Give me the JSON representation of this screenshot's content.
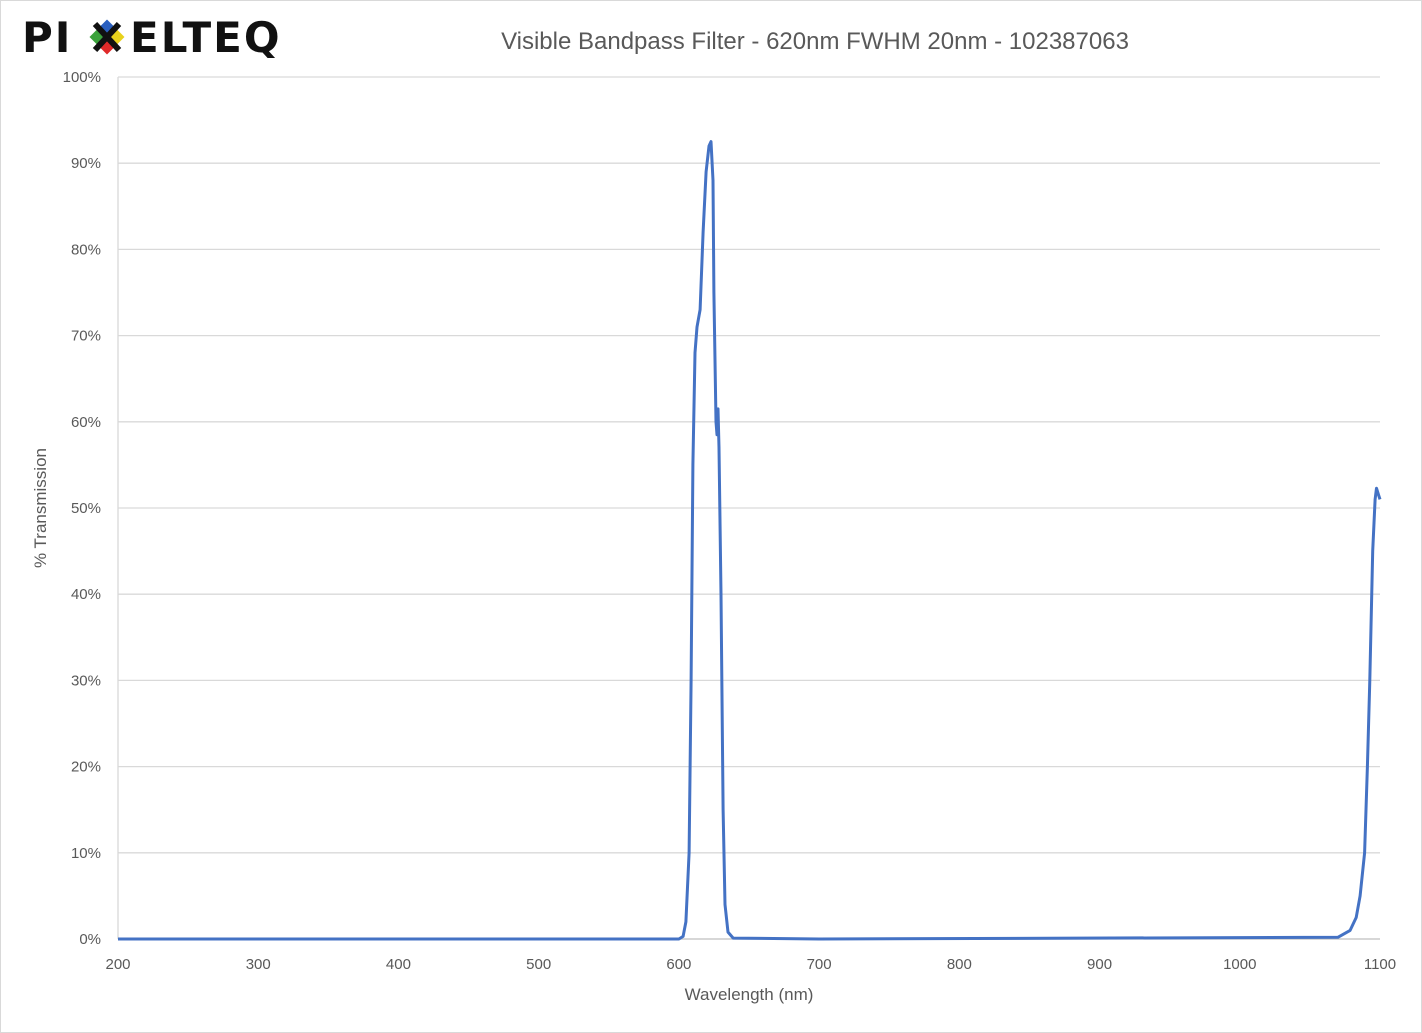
{
  "logo": {
    "text": "PIXELTEQ",
    "colors": [
      "#2a5fbf",
      "#e8d21c",
      "#e02a2a",
      "#3aa23a"
    ]
  },
  "chart_data": {
    "type": "line",
    "title": "Visible Bandpass Filter - 620nm FWHM 20nm - 102387063",
    "xlabel": "Wavelength (nm)",
    "ylabel": "% Transmission",
    "xlim": [
      200,
      1100
    ],
    "ylim": [
      0,
      100
    ],
    "xticks": [
      200,
      300,
      400,
      500,
      600,
      700,
      800,
      900,
      1000,
      1100
    ],
    "yticks": [
      "0%",
      "10%",
      "20%",
      "30%",
      "40%",
      "50%",
      "60%",
      "70%",
      "80%",
      "90%",
      "100%"
    ],
    "grid": "horizontal",
    "legend": "none",
    "line_color": "#4472c4",
    "series": [
      {
        "x": [
          200,
          600,
          603,
          605,
          607.3,
          608.7,
          610,
          611.5,
          612.9,
          615.1,
          617.3,
          619.4,
          621.5,
          622.9,
          624.3,
          625,
          626.5,
          627.2,
          627.9,
          628.6,
          630,
          631.5,
          632.9,
          635,
          638.7,
          700,
          1070,
          1078.7,
          1083,
          1085.8,
          1089,
          1091,
          1092.7,
          1094.8,
          1096.5,
          1097.5,
          1099,
          1100
        ],
        "y": [
          0,
          0,
          0.3,
          2,
          10,
          30,
          55,
          68,
          71,
          73,
          82,
          89,
          92,
          92.5,
          88,
          75,
          60,
          58.5,
          61.5,
          57,
          40,
          15,
          4,
          0.8,
          0.1,
          0,
          0.2,
          1,
          2.5,
          5,
          10,
          20,
          30,
          45,
          51,
          52.3,
          51.5,
          51
        ]
      }
    ]
  }
}
